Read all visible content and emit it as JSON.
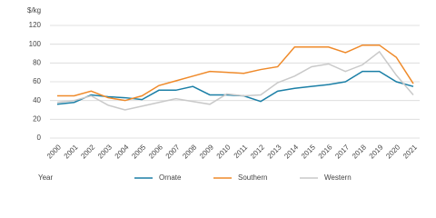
{
  "chart_data": {
    "type": "line",
    "y_label": "$/kg",
    "x_label": "Year",
    "categories": [
      "2000",
      "2001",
      "2002",
      "2003",
      "2004",
      "2005",
      "2006",
      "2007",
      "2008",
      "2009",
      "2010",
      "2011",
      "2012",
      "2013",
      "2014",
      "2015",
      "2016",
      "2017",
      "2018",
      "2019",
      "2020",
      "2021"
    ],
    "series": [
      {
        "name": "Ornate",
        "color": "#1b7fa6",
        "values": [
          36,
          38,
          46,
          44,
          43,
          41,
          51,
          51,
          55,
          46,
          46,
          45,
          39,
          50,
          53,
          55,
          57,
          60,
          71,
          71,
          60,
          55
        ]
      },
      {
        "name": "Southern",
        "color": "#ef8a2a",
        "values": [
          45,
          45,
          50,
          43,
          40,
          45,
          56,
          61,
          66,
          71,
          70,
          69,
          73,
          76,
          97,
          97,
          97,
          91,
          99,
          99,
          86,
          58
        ]
      },
      {
        "name": "Western",
        "color": "#c9c9c9",
        "values": [
          38,
          40,
          45,
          35,
          30,
          34,
          38,
          42,
          39,
          36,
          47,
          45,
          46,
          59,
          66,
          76,
          79,
          71,
          78,
          92,
          67,
          46
        ]
      }
    ],
    "ylim": [
      0,
      120
    ],
    "yticks": [
      0,
      20,
      40,
      60,
      80,
      100,
      120
    ],
    "grid": true,
    "legend": "bottom"
  }
}
